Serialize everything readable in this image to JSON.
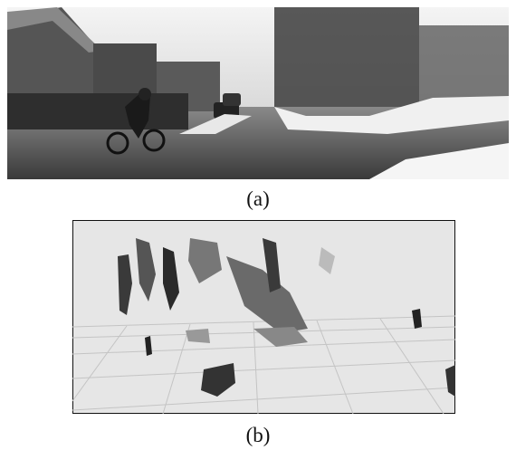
{
  "figure": {
    "panels": [
      {
        "caption": "(a)"
      },
      {
        "caption": "(b)"
      }
    ]
  }
}
